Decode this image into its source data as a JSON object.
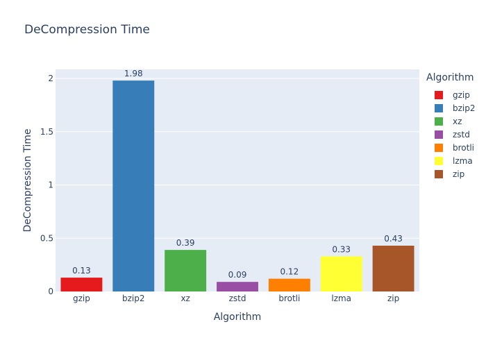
{
  "chart_data": {
    "type": "bar",
    "title": "DeCompression Time",
    "xlabel": "Algorithm",
    "ylabel": "DeCompression Time",
    "ylim": [
      0,
      2.085
    ],
    "yticks": [
      0,
      0.5,
      1,
      1.5,
      2
    ],
    "ytick_labels": [
      "0",
      "0.5",
      "1",
      "1.5",
      "2"
    ],
    "grid": true,
    "legend_title": "Algorithm",
    "legend_position": "right",
    "categories": [
      "gzip",
      "bzip2",
      "xz",
      "zstd",
      "brotli",
      "lzma",
      "zip"
    ],
    "values": [
      0.13,
      1.98,
      0.39,
      0.09,
      0.12,
      0.33,
      0.43
    ],
    "labels": [
      "0.13",
      "1.98",
      "0.39",
      "0.09",
      "0.12",
      "0.33",
      "0.43"
    ],
    "colors": [
      "#e41a1c",
      "#377eb8",
      "#4daf4a",
      "#984ea3",
      "#ff7f00",
      "#ffff33",
      "#a65628"
    ]
  },
  "styles": {
    "plot_background": "#e5ecf6",
    "grid_color": "#ffffff",
    "text_color": "#2a3f5f"
  }
}
